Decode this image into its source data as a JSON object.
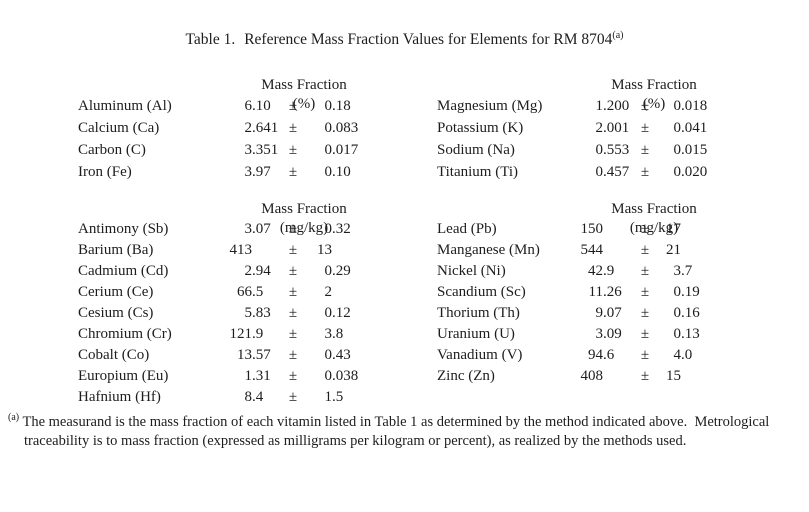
{
  "title": {
    "label": "Table 1.",
    "text": "Reference Mass Fraction Values for Elements for RM 8704",
    "superscript": "(a)"
  },
  "symbols": {
    "pm": "±"
  },
  "sections": {
    "percent": {
      "header": {
        "name": "Mass Fraction",
        "unit": "(%)"
      },
      "left_rows": [
        {
          "element": "Aluminum (Al)",
          "value": "6.10",
          "uncertainty": "0.18"
        },
        {
          "element": "Calcium (Ca)",
          "value": "2.641",
          "uncertainty": "0.083"
        },
        {
          "element": "Carbon (C)",
          "value": "3.351",
          "uncertainty": "0.017"
        },
        {
          "element": "Iron (Fe)",
          "value": "3.97",
          "uncertainty": "0.10"
        }
      ],
      "right_rows": [
        {
          "element": "Magnesium (Mg)",
          "value": "1.200",
          "uncertainty": "0.018"
        },
        {
          "element": "Potassium (K)",
          "value": "2.001",
          "uncertainty": "0.041"
        },
        {
          "element": "Sodium (Na)",
          "value": "0.553",
          "uncertainty": "0.015"
        },
        {
          "element": "Titanium (Ti)",
          "value": "0.457",
          "uncertainty": "0.020"
        }
      ]
    },
    "mgkg": {
      "header": {
        "name": "Mass Fraction",
        "unit": "(mg/kg)"
      },
      "left_rows": [
        {
          "element": "Antimony (Sb)",
          "value": "3.07",
          "uncertainty": "0.32"
        },
        {
          "element": "Barium (Ba)",
          "value": "413",
          "uncertainty": "13"
        },
        {
          "element": "Cadmium (Cd)",
          "value": "2.94",
          "uncertainty": "0.29"
        },
        {
          "element": "Cerium (Ce)",
          "value": "66.5",
          "uncertainty": "2"
        },
        {
          "element": "Cesium (Cs)",
          "value": "5.83",
          "uncertainty": "0.12"
        },
        {
          "element": "Chromium (Cr)",
          "value": "121.9",
          "uncertainty": "3.8"
        },
        {
          "element": "Cobalt (Co)",
          "value": "13.57",
          "uncertainty": "0.43"
        },
        {
          "element": "Europium (Eu)",
          "value": "1.31",
          "uncertainty": "0.038"
        },
        {
          "element": "Hafnium (Hf)",
          "value": "8.4",
          "uncertainty": "1.5"
        }
      ],
      "right_rows": [
        {
          "element": "Lead (Pb)",
          "value": "150",
          "uncertainty": "17"
        },
        {
          "element": "Manganese (Mn)",
          "value": "544",
          "uncertainty": "21"
        },
        {
          "element": "Nickel (Ni)",
          "value": "42.9",
          "uncertainty": "3.7"
        },
        {
          "element": "Scandium (Sc)",
          "value": "11.26",
          "uncertainty": "0.19"
        },
        {
          "element": "Thorium (Th)",
          "value": "9.07",
          "uncertainty": "0.16"
        },
        {
          "element": "Uranium (U)",
          "value": "3.09",
          "uncertainty": "0.13"
        },
        {
          "element": "Vanadium (V)",
          "value": "94.6",
          "uncertainty": "4.0"
        },
        {
          "element": "Zinc (Zn)",
          "value": "408",
          "uncertainty": "15"
        }
      ]
    }
  },
  "footnote": {
    "marker": "(a)",
    "lines": [
      "The measurand is the mass fraction of each vitamin listed in Table 1 as determined by the method indicated above.  Metrological",
      "traceability is to mass fraction (expressed as milligrams per kilogram or percent), as realized by the methods used."
    ]
  }
}
